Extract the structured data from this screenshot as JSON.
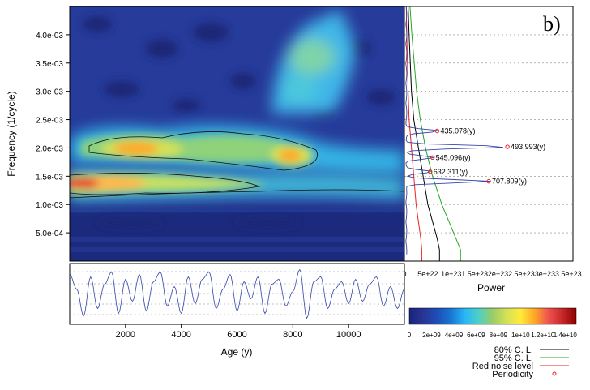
{
  "panel_label": "b)",
  "colors": {
    "scale": [
      "#1a237e",
      "#283593",
      "#1e4db7",
      "#1976d2",
      "#29b6f6",
      "#4dd0c4",
      "#9ccc65",
      "#d4e157",
      "#ffeb3b",
      "#ffa726",
      "#ef5350",
      "#c62828",
      "#8b0000"
    ],
    "c80": "#000000",
    "c95": "#22aa22",
    "red_noise": "#ee2222",
    "power_line": "#3344aa",
    "periodicity": "#ee2222",
    "series_line": "#3344aa"
  },
  "chart_data": [
    {
      "type": "heatmap",
      "title": "",
      "xlabel": "Age (y)",
      "ylabel": "Frequency (1/cycle)",
      "xlim": [
        0,
        12000
      ],
      "ylim": [
        0.0,
        0.0045
      ],
      "x_ticks": [
        2000,
        4000,
        6000,
        8000,
        10000
      ],
      "x_tick_labels": [
        "2000",
        "4000",
        "6000",
        "8000",
        "10000"
      ],
      "y_ticks": [
        0.0005,
        0.001,
        0.0015,
        0.002,
        0.0025,
        0.003,
        0.0035,
        0.004
      ],
      "y_tick_labels": [
        "5.0e-04",
        "1.0e-03",
        "1.5e-03",
        "2.0e-03",
        "2.5e-03",
        "3.0e-03",
        "3.5e-03",
        "4.0e-03"
      ],
      "colorbar": {
        "min": 0,
        "max": 15000000000,
        "ticks": [
          0,
          2000000000,
          4000000000,
          6000000000,
          8000000000,
          10000000000,
          12000000000,
          14000000000
        ],
        "tick_labels": [
          "0",
          "2e+09",
          "4e+09",
          "6e+09",
          "8e+09",
          "1e+10",
          "1.2e+10",
          "1.4e+10"
        ]
      },
      "features": [
        {
          "name": "band-2.0e-03",
          "x_range": [
            0,
            9500
          ],
          "freq": 0.00198,
          "peak_power": 11000000000
        },
        {
          "name": "band-1.45e-03",
          "x_range": [
            0,
            12000
          ],
          "freq": 0.00143,
          "peak_power": 14000000000
        },
        {
          "name": "high-freq-region",
          "x_range": [
            7800,
            9300
          ],
          "freq": 0.0034,
          "peak_power": 6000000000
        }
      ]
    },
    {
      "type": "line",
      "title": "",
      "xlabel": "Power",
      "ylabel": "",
      "x_ticks": [
        0,
        5e+22,
        1e+23,
        1.5e+23,
        2e+23,
        2.5e+23,
        3e+23,
        3.5e+23
      ],
      "x_tick_labels": [
        "0",
        "5e+22",
        "1e+23",
        "1.5e+23",
        "2e+23",
        "2.5e+23",
        "3e+23",
        "3.5e+23"
      ],
      "xlim": [
        0,
        3.6e+23
      ],
      "ylim": [
        0.0,
        0.0045
      ],
      "series": [
        {
          "name": "80% C. L.",
          "points": [
            [
              8e+21,
              0.0045
            ],
            [
              1e+22,
              0.004
            ],
            [
              1.5e+22,
              0.003
            ],
            [
              2e+22,
              0.0025
            ],
            [
              3e+22,
              0.002
            ],
            [
              4e+22,
              0.0015
            ],
            [
              5e+22,
              0.001
            ],
            [
              6e+22,
              0.0007
            ],
            [
              7e+22,
              0.0004
            ],
            [
              7.5e+22,
              0.0002
            ]
          ]
        },
        {
          "name": "95% C. L.",
          "points": [
            [
              1.2e+22,
              0.0045
            ],
            [
              1.6e+22,
              0.004
            ],
            [
              2.6e+22,
              0.003
            ],
            [
              3.4e+22,
              0.0025
            ],
            [
              4.5e+22,
              0.002
            ],
            [
              6e+22,
              0.0015
            ],
            [
              8e+22,
              0.001
            ],
            [
              9.5e+22,
              0.0007
            ],
            [
              1.1e+23,
              0.0004
            ],
            [
              1.2e+23,
              0.0002
            ]
          ]
        },
        {
          "name": "Red noise level",
          "points": [
            [
              4e+21,
              0.0045
            ],
            [
              5e+21,
              0.004
            ],
            [
              8e+21,
              0.003
            ],
            [
              1e+22,
              0.0025
            ],
            [
              1.5e+22,
              0.002
            ],
            [
              2e+22,
              0.0015
            ],
            [
              2.5e+22,
              0.001
            ],
            [
              3e+22,
              0.0007
            ],
            [
              3.5e+22,
              0.0004
            ],
            [
              3.7e+22,
              0.0002
            ]
          ]
        }
      ],
      "peaks": [
        {
          "label": "435.078(y)",
          "power": 7e+22,
          "freq": 0.0023
        },
        {
          "label": "493.993(y)",
          "power": 2.2e+23,
          "freq": 0.00202
        },
        {
          "label": "545.096(y)",
          "power": 6e+22,
          "freq": 0.00183
        },
        {
          "label": "632.311(y)",
          "power": 5.5e+22,
          "freq": 0.00158
        },
        {
          "label": "707.809(y)",
          "power": 1.8e+23,
          "freq": 0.00141
        }
      ],
      "legend": {
        "placement": "bottom-right",
        "entries": [
          "80% C. L.",
          "95% C. L.",
          "Red noise level",
          "Periodicity"
        ]
      }
    },
    {
      "type": "line",
      "title": "",
      "xlabel": "",
      "ylabel": "",
      "xlim": [
        0,
        12000
      ],
      "series": [
        {
          "name": "",
          "x": [
            0,
            250,
            500,
            750,
            1000,
            1250,
            1500,
            1750,
            2000,
            2250,
            2500,
            2750,
            3000,
            3250,
            3500,
            3750,
            4000,
            4250,
            4500,
            4750,
            5000,
            5250,
            5500,
            5750,
            6000,
            6250,
            6500,
            6750,
            7000,
            7250,
            7500,
            7750,
            8000,
            8250,
            8500,
            8750,
            9000,
            9250,
            9500,
            9750,
            10000,
            10250,
            10500,
            10750,
            11000,
            11250,
            11500,
            11750,
            12000
          ],
          "values": [
            0.8,
            0.2,
            -0.9,
            0.7,
            -0.6,
            0.4,
            0.9,
            -0.8,
            0.6,
            -0.3,
            0.8,
            -0.7,
            0.5,
            0.9,
            -0.5,
            0.3,
            -0.8,
            0.7,
            -0.4,
            0.6,
            0.9,
            -0.6,
            0.2,
            0.8,
            -0.7,
            0.5,
            -0.2,
            0.7,
            -0.8,
            0.4,
            0.6,
            -0.5,
            0.1,
            1.0,
            -1.0,
            0.5,
            0.7,
            -0.6,
            0.2,
            0.5,
            -0.4,
            0.6,
            -0.3,
            0.4,
            0.7,
            -0.5,
            0.3,
            -0.6,
            0.2
          ]
        }
      ]
    }
  ]
}
